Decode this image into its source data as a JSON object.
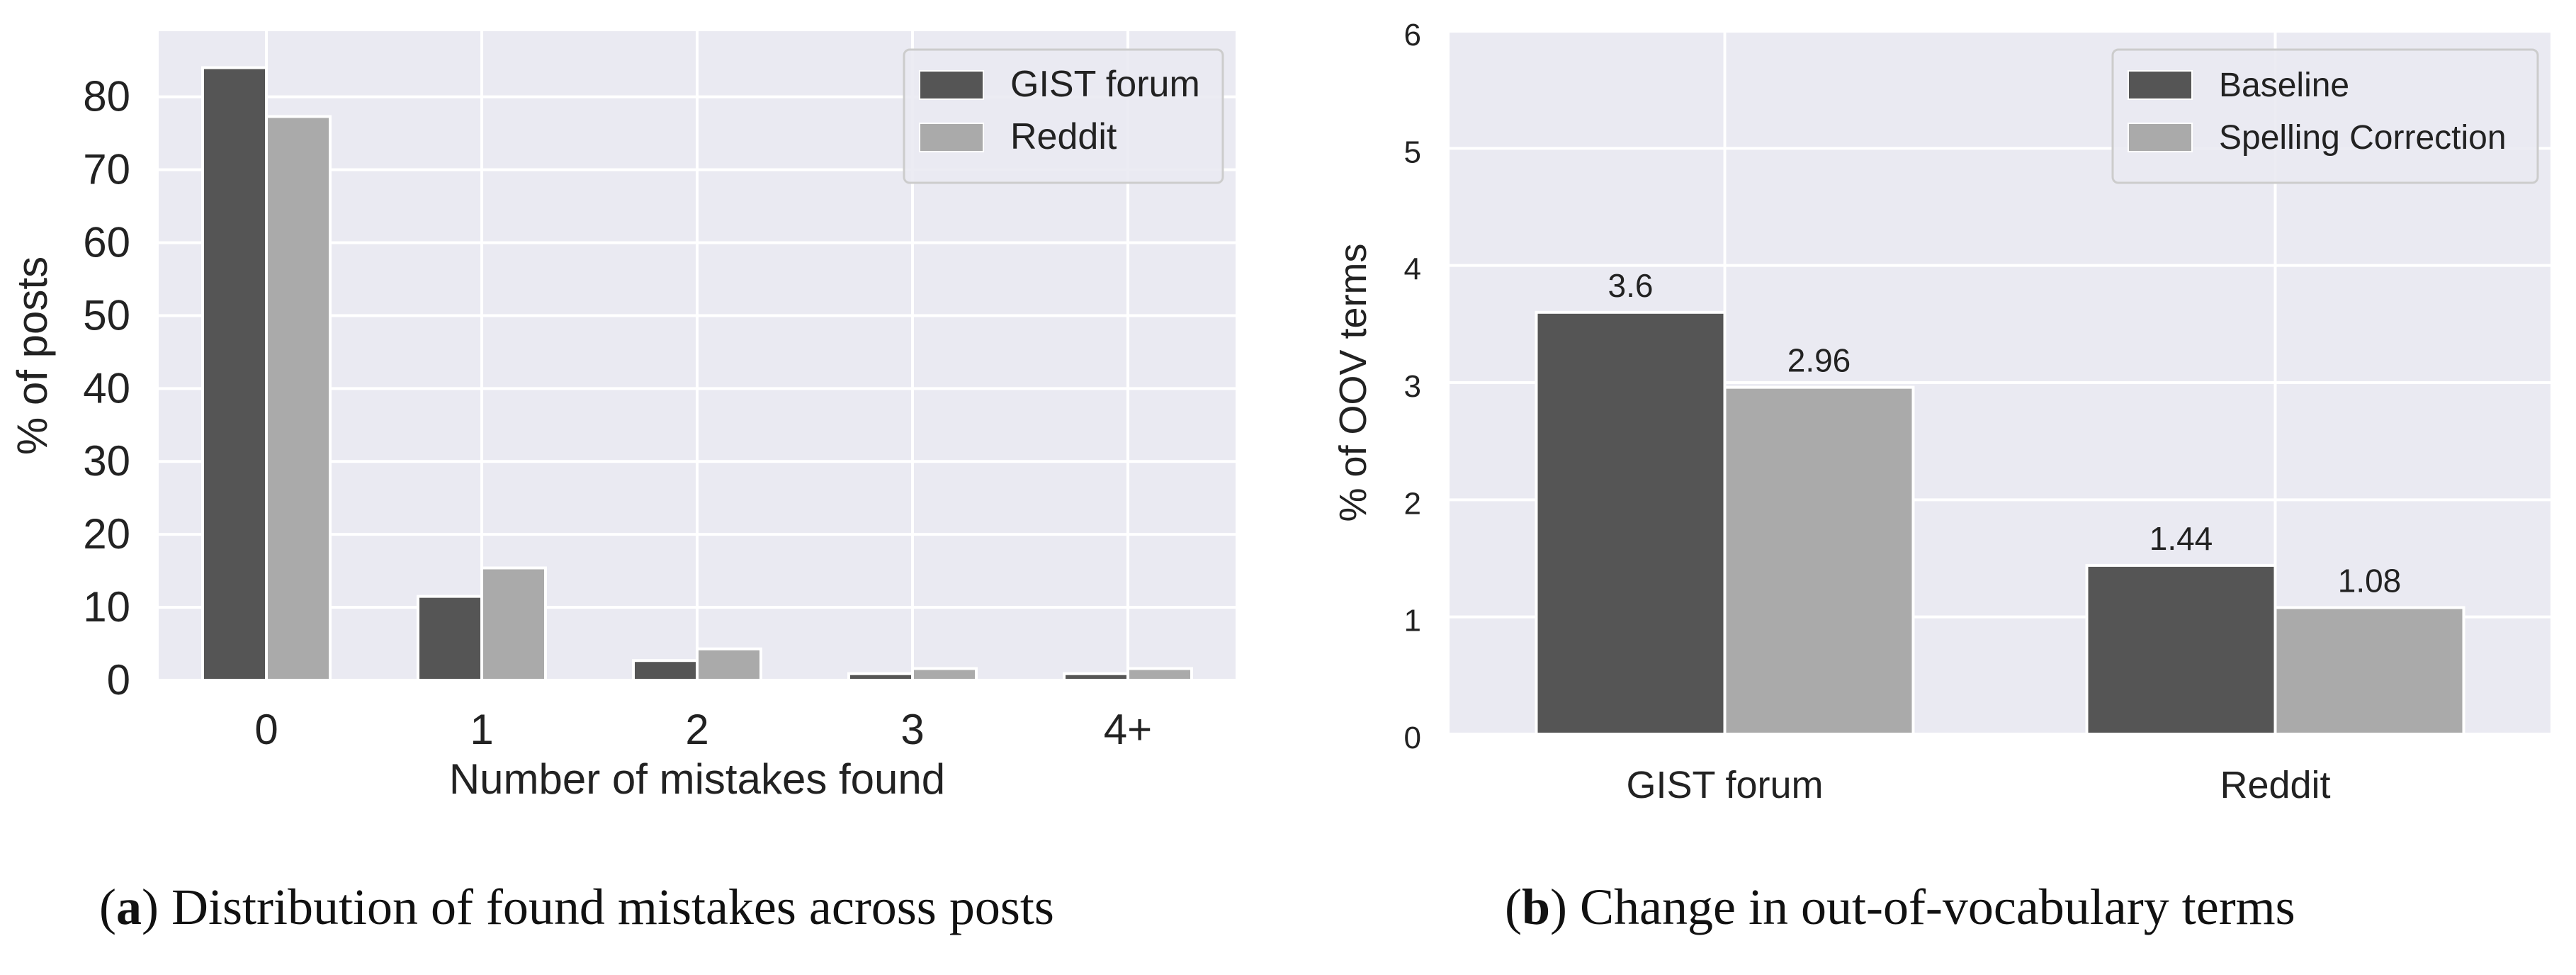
{
  "chart_data": [
    {
      "type": "bar",
      "caption_label": "a",
      "caption": "Distribution of found mistakes across posts",
      "xlabel": "Number of mistakes found",
      "ylabel": "% of posts",
      "categories": [
        "0",
        "1",
        "2",
        "3",
        "4+"
      ],
      "series": [
        {
          "name": "GIST forum",
          "color": "#555555",
          "values": [
            84,
            11.5,
            2.7,
            0.9,
            0.9
          ]
        },
        {
          "name": "Reddit",
          "color": "#aaaaaa",
          "values": [
            77.3,
            15.4,
            4.3,
            1.6,
            1.6
          ]
        }
      ],
      "ylim": [
        0,
        89
      ],
      "yticks": [
        "0",
        "10",
        "20",
        "30",
        "40",
        "50",
        "60",
        "70",
        "80"
      ],
      "grid": true,
      "background": "#eaeaf2",
      "legend": "top-right",
      "data_labels": false
    },
    {
      "type": "bar",
      "caption_label": "b",
      "caption": "Change in out-of-vocabulary terms",
      "xlabel": "",
      "ylabel": "% of OOV terms",
      "categories": [
        "GIST forum",
        "Reddit"
      ],
      "series": [
        {
          "name": "Baseline",
          "color": "#555555",
          "values": [
            3.6,
            1.44
          ],
          "labels": [
            "3.6",
            "1.44"
          ]
        },
        {
          "name": "Spelling Correction",
          "color": "#aaaaaa",
          "values": [
            2.96,
            1.08
          ],
          "labels": [
            "2.96",
            "1.08"
          ]
        }
      ],
      "ylim": [
        0,
        6
      ],
      "yticks": [
        "0",
        "1",
        "2",
        "3",
        "4",
        "5",
        "6"
      ],
      "grid": true,
      "background": "#eaeaf2",
      "legend": "top-right",
      "data_labels": true
    }
  ]
}
